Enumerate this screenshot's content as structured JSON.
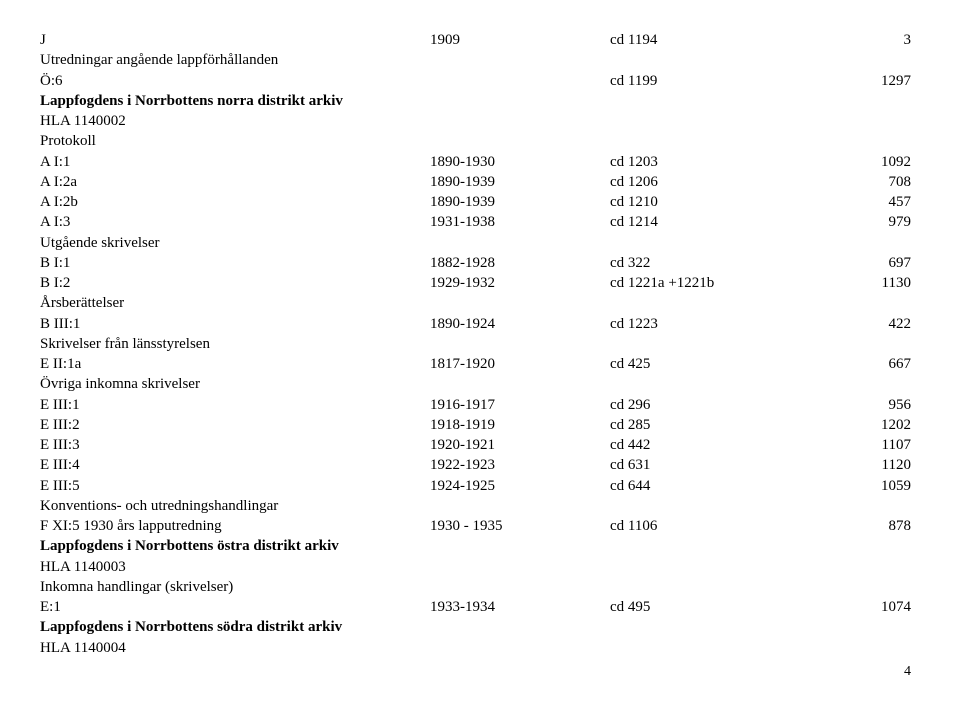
{
  "rows": [
    {
      "c1": "J",
      "c2": "1909",
      "c3": "cd 1194",
      "c4": "3"
    }
  ],
  "sections": [
    {
      "text": "Utredningar angående lappförhållanden",
      "bold": false
    }
  ],
  "rows2": [
    {
      "c1": "Ö:6",
      "c2": "",
      "c3": "cd 1199",
      "c4": "1297"
    }
  ],
  "sections2": [
    {
      "text": "Lappfogdens i Norrbottens norra distrikt arkiv",
      "bold": true
    },
    {
      "text": "HLA 1140002",
      "bold": false
    },
    {
      "text": "Protokoll",
      "bold": false
    }
  ],
  "rows3": [
    {
      "c1": "A I:1",
      "c2": "1890-1930",
      "c3": "cd 1203",
      "c4": "1092"
    },
    {
      "c1": "A I:2a",
      "c2": "1890-1939",
      "c3": "cd 1206",
      "c4": "708"
    },
    {
      "c1": "A I:2b",
      "c2": "1890-1939",
      "c3": "cd 1210",
      "c4": "457"
    },
    {
      "c1": "A I:3",
      "c2": "1931-1938",
      "c3": "cd 1214",
      "c4": "979"
    }
  ],
  "sections3": [
    {
      "text": "Utgående skrivelser",
      "bold": false
    }
  ],
  "rows4": [
    {
      "c1": "B I:1",
      "c2": "1882-1928",
      "c3": "cd 322",
      "c4": "697"
    },
    {
      "c1": "B I:2",
      "c2": "1929-1932",
      "c3": "cd 1221a +1221b",
      "c4": "1130"
    }
  ],
  "sections4": [
    {
      "text": "Årsberättelser",
      "bold": false
    }
  ],
  "rows5": [
    {
      "c1": "B III:1",
      "c2": "1890-1924",
      "c3": "cd 1223",
      "c4": "422"
    }
  ],
  "sections5": [
    {
      "text": "Skrivelser från länsstyrelsen",
      "bold": false
    }
  ],
  "rows6": [
    {
      "c1": "E II:1a",
      "c2": "1817-1920",
      "c3": "cd 425",
      "c4": "667"
    }
  ],
  "sections6": [
    {
      "text": "Övriga inkomna skrivelser",
      "bold": false
    }
  ],
  "rows7": [
    {
      "c1": "E III:1",
      "c2": "1916-1917",
      "c3": "cd 296",
      "c4": "956"
    },
    {
      "c1": "E III:2",
      "c2": "1918-1919",
      "c3": "cd 285",
      "c4": "1202"
    },
    {
      "c1": "E III:3",
      "c2": "1920-1921",
      "c3": "cd 442",
      "c4": "1107"
    },
    {
      "c1": "E III:4",
      "c2": "1922-1923",
      "c3": "cd 631",
      "c4": "1120"
    },
    {
      "c1": "E III:5",
      "c2": "1924-1925",
      "c3": "cd 644",
      "c4": "1059"
    }
  ],
  "sections7": [
    {
      "text": "Konventions- och utredningshandlingar",
      "bold": false
    }
  ],
  "rows8": [
    {
      "c1": "F XI:5 1930 års lapputredning",
      "c2": "1930 - 1935",
      "c3": "cd 1106",
      "c4": "878"
    }
  ],
  "sections8": [
    {
      "text": "Lappfogdens i Norrbottens östra distrikt arkiv",
      "bold": true
    },
    {
      "text": "HLA 1140003",
      "bold": false
    },
    {
      "text": "Inkomna handlingar (skrivelser)",
      "bold": false
    }
  ],
  "rows9": [
    {
      "c1": "E:1",
      "c2": "1933-1934",
      "c3": "cd 495",
      "c4": "1074"
    }
  ],
  "sections9": [
    {
      "text": "Lappfogdens i Norrbottens södra distrikt arkiv",
      "bold": true
    },
    {
      "text": "HLA 1140004",
      "bold": false
    }
  ],
  "pagenum": "4"
}
